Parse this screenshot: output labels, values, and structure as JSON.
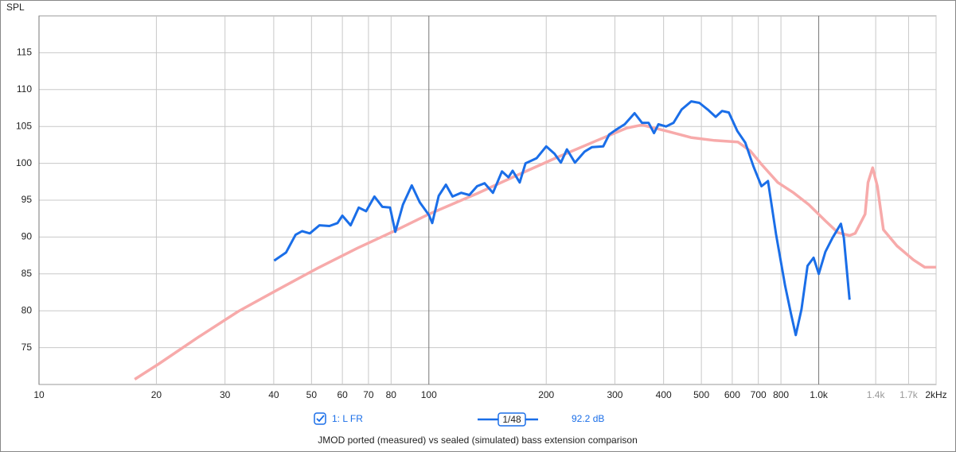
{
  "chart_data": {
    "type": "line",
    "y_label": "SPL",
    "caption": "JMOD ported (measured) vs sealed (simulated) bass extension comparison",
    "smoothing": "1/48",
    "level": "92.2 dB",
    "xscale": "log",
    "xlim": [
      10,
      2000
    ],
    "ylim": [
      70,
      120
    ],
    "grid": true,
    "xticks": [
      10,
      20,
      30,
      40,
      50,
      60,
      70,
      80,
      100,
      200,
      300,
      400,
      500,
      600,
      700,
      800,
      {
        "value": 1000,
        "label": "1.0k"
      },
      {
        "value": 1400,
        "label": "1.4k",
        "color": "#999999"
      },
      {
        "value": 1700,
        "label": "1.7k",
        "color": "#999999"
      },
      {
        "value": 2000,
        "label": "2kHz"
      }
    ],
    "yticks": [
      75,
      80,
      85,
      90,
      95,
      100,
      105,
      110,
      115
    ],
    "series": [
      {
        "name": "1: L FR",
        "color": "#1a6ee8",
        "x": [
          40.1,
          43,
          45.5,
          47.3,
          49.5,
          52.4,
          55.6,
          58.3,
          60,
          63,
          66.1,
          69,
          72.5,
          76,
          79.5,
          82,
          85.8,
          90.4,
          94.8,
          100,
          102,
          106,
          110.6,
          115,
          121,
          127,
          133,
          139,
          146,
          154,
          160,
          164,
          171,
          177,
          189,
          200,
          210,
          218,
          226,
          237,
          251,
          262,
          280,
          290,
          301,
          318,
          337,
          352,
          366,
          378,
          388,
          406,
          424,
          445,
          471,
          494,
          519,
          544,
          565,
          588,
          618,
          648,
          680,
          713,
          741,
          777,
          820,
          849,
          873,
          903,
          936,
          970,
          1000,
          1040,
          1085,
          1140,
          1160,
          1200
        ],
        "values": [
          86.8,
          87.9,
          90.3,
          90.8,
          90.5,
          91.6,
          91.5,
          91.9,
          92.9,
          91.6,
          94.0,
          93.5,
          95.5,
          94.1,
          94.0,
          90.7,
          94.4,
          97.0,
          94.7,
          93.0,
          91.9,
          95.6,
          97.1,
          95.5,
          96.0,
          95.7,
          96.9,
          97.3,
          96.0,
          98.9,
          98.1,
          99.0,
          97.4,
          100.0,
          100.7,
          102.3,
          101.3,
          100.1,
          101.9,
          100.1,
          101.6,
          102.2,
          102.3,
          103.9,
          104.5,
          105.3,
          106.8,
          105.5,
          105.5,
          104.1,
          105.3,
          105.0,
          105.5,
          107.3,
          108.4,
          108.2,
          107.3,
          106.3,
          107.1,
          106.9,
          104.4,
          102.8,
          99.6,
          96.9,
          97.6,
          90.4,
          83.4,
          79.6,
          76.7,
          80.2,
          86.1,
          87.2,
          85.0,
          88.0,
          89.9,
          91.8,
          89.9,
          81.5
        ]
      },
      {
        "color": "#f7aaaa",
        "x": [
          17.6,
          20.3,
          25.6,
          32.4,
          41.1,
          51.9,
          65.6,
          83,
          100,
          133,
          167,
          211,
          267,
          322,
          352,
          406,
          470,
          540,
          620,
          667,
          715,
          785,
          862,
          943,
          1040,
          1120,
          1200,
          1240,
          1315,
          1338,
          1375,
          1414,
          1465,
          1587,
          1750,
          1870,
          2000
        ],
        "values": [
          70.7,
          72.8,
          76.4,
          79.9,
          82.9,
          85.8,
          88.5,
          91.0,
          93.1,
          95.9,
          98.3,
          100.7,
          103.0,
          104.8,
          105.2,
          104.4,
          103.5,
          103.1,
          102.9,
          101.7,
          99.8,
          97.4,
          96.0,
          94.4,
          92.2,
          90.6,
          90.2,
          90.5,
          93.1,
          97.4,
          99.4,
          96.9,
          91.0,
          88.8,
          86.9,
          85.9,
          85.9
        ]
      }
    ]
  }
}
